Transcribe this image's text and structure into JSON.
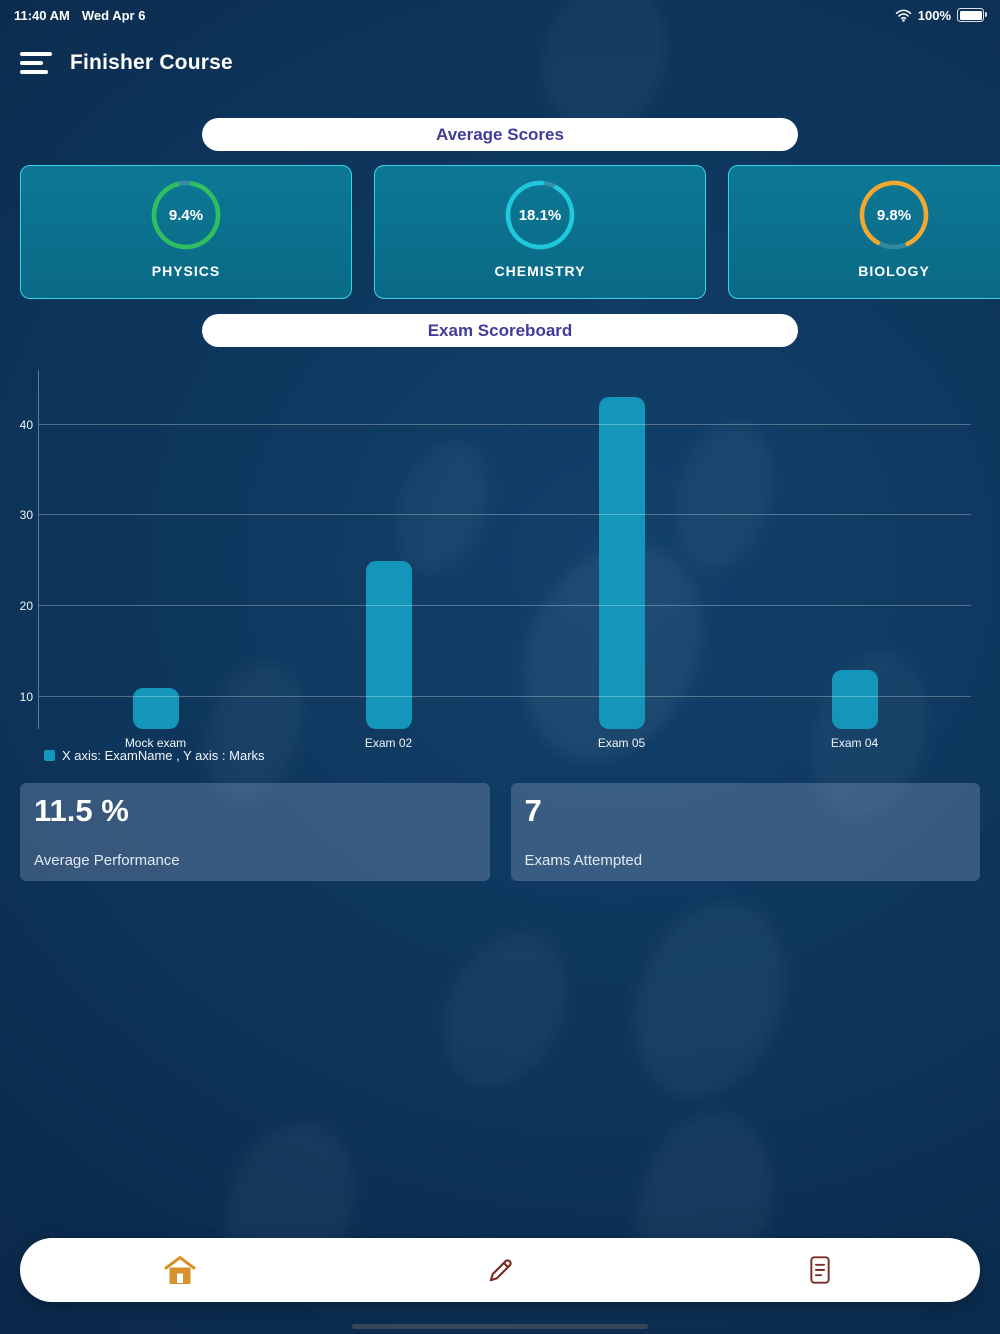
{
  "status_bar": {
    "time": "11:40 AM",
    "date": "Wed Apr 6",
    "battery_percent": "100%"
  },
  "header": {
    "title": "Finisher Course"
  },
  "section_pills": {
    "average_scores": "Average Scores",
    "exam_scoreboard": "Exam Scoreboard"
  },
  "subjects": [
    {
      "name": "PHYSICS",
      "score": "9.4%",
      "color": "#2fbf5f"
    },
    {
      "name": "CHEMISTRY",
      "score": "18.1%",
      "color": "#1fc9dc"
    },
    {
      "name": "BIOLOGY",
      "score": "9.8%",
      "color": "#f2a72e"
    }
  ],
  "chart_data": {
    "type": "bar",
    "title": "Exam Scoreboard",
    "categories": [
      "Mock exam",
      "Exam 02",
      "Exam 05",
      "Exam 04"
    ],
    "values": [
      11,
      25,
      43,
      13
    ],
    "yticks": [
      10,
      20,
      30,
      40
    ],
    "ylim": [
      0,
      45
    ],
    "xlabel": "ExamName",
    "ylabel": "Marks",
    "legend": "X axis: ExamName , Y axis : Marks",
    "bar_color": "#1496ba",
    "grid": true,
    "legend_position": "bottom-left"
  },
  "stats": [
    {
      "value": "11.5 %",
      "label": "Average Performance"
    },
    {
      "value": "7",
      "label": "Exams Attempted"
    }
  ],
  "bottom_nav": {
    "items": [
      {
        "icon": "home-icon",
        "color": "#d8922b"
      },
      {
        "icon": "pencil-icon",
        "color": "#7b2d26"
      },
      {
        "icon": "document-icon",
        "color": "#7b2d26"
      }
    ]
  },
  "colors": {
    "background": "#0d3358",
    "card_teal": "#0b7390",
    "card_border": "#35d2e8",
    "pill_text": "#403d99",
    "bar_accent": "#1496ba"
  }
}
